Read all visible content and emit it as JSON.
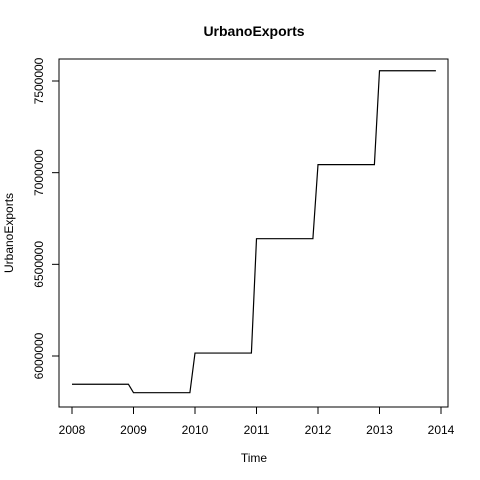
{
  "chart_data": {
    "type": "line",
    "title": "UrbanoExports",
    "xlabel": "Time",
    "ylabel": "UrbanoExports",
    "xlim": [
      2008,
      2014
    ],
    "ylim": [
      5800000,
      7560000
    ],
    "x_ticks": [
      "2008",
      "2009",
      "2010",
      "2011",
      "2012",
      "2013",
      "2014"
    ],
    "y_ticks": [
      "6000000",
      "6500000",
      "7000000",
      "7500000"
    ],
    "grid": false,
    "legend": "none",
    "line_color": "#000000",
    "series": [
      {
        "x": [
          2008.0,
          2008.917,
          2009.0,
          2009.917,
          2010.0,
          2010.917,
          2011.0,
          2011.917,
          2012.0,
          2012.917,
          2013.0,
          2013.917
        ],
        "y": [
          5846000,
          5846000,
          5800000,
          5800000,
          6016000,
          6016000,
          6640000,
          6640000,
          7044000,
          7044000,
          7556000,
          7556000
        ]
      }
    ]
  }
}
